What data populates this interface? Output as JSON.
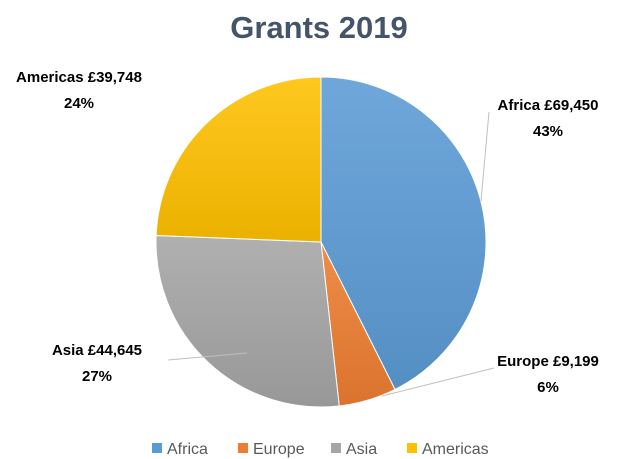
{
  "chart_data": {
    "type": "pie",
    "title": "Grants 2019",
    "currency": "£",
    "slices": [
      {
        "name": "Africa",
        "value": 69450,
        "value_label": "£69,450",
        "percent_label": "43%",
        "color": "#5b9bd5"
      },
      {
        "name": "Europe",
        "value": 9199,
        "value_label": "£9,199",
        "percent_label": "6%",
        "color": "#ed7d31"
      },
      {
        "name": "Asia",
        "value": 44645,
        "value_label": "£44,645",
        "percent_label": "27%",
        "color": "#a5a5a5"
      },
      {
        "name": "Americas",
        "value": 39748,
        "value_label": "£39,748",
        "percent_label": "24%",
        "color": "#ffc000"
      }
    ],
    "legend_position": "bottom",
    "start_angle": "top",
    "direction": "clockwise"
  }
}
